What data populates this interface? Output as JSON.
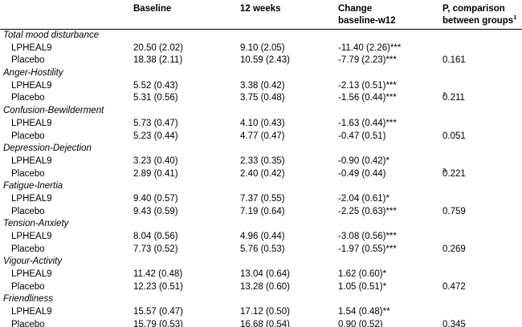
{
  "headers": {
    "baseline": "Baseline",
    "w12": "12 weeks",
    "change_line1": "Change",
    "change_line2": "baseline-w12",
    "p_line1": "P, comparison",
    "p_line2": "between groups",
    "p_sup": "1"
  },
  "sections": [
    {
      "title": "Total mood disturbance",
      "rows": [
        {
          "group": "LPHEAL9",
          "baseline": "20.50 (2.02)",
          "w12": "9.10 (2.05)",
          "change": "-11.40 (2.26)***",
          "p": "",
          "p_sup": ""
        },
        {
          "group": "Placebo",
          "baseline": "18.38 (2.11)",
          "w12": "10.59 (2.43)",
          "change": "-7.79 (2.23)***",
          "p": "0.161",
          "p_sup": ""
        }
      ]
    },
    {
      "title": "Anger-Hostility",
      "rows": [
        {
          "group": "LPHEAL9",
          "baseline": "5.52 (0.43)",
          "w12": "3.38 (0.42)",
          "change": "-2.13 (0.51)***",
          "p": "",
          "p_sup": ""
        },
        {
          "group": "Placebo",
          "baseline": "5.31 (0.56)",
          "w12": "3.75 (0.48)",
          "change": "-1.56 (0.44)***",
          "p": "0.211",
          "p_sup": "2"
        }
      ]
    },
    {
      "title": "Confusion-Bewilderment",
      "rows": [
        {
          "group": "LPHEAL9",
          "baseline": "5.73 (0.47)",
          "w12": "4.10 (0.43)",
          "change": "-1.63 (0.44)***",
          "p": "",
          "p_sup": ""
        },
        {
          "group": "Placebo",
          "baseline": "5.23 (0.44)",
          "w12": "4.77 (0.47)",
          "change": "-0.47 (0.51)",
          "p": "0.051",
          "p_sup": ""
        }
      ]
    },
    {
      "title": "Depression-Dejection",
      "rows": [
        {
          "group": "LPHEAL9",
          "baseline": "3.23 (0.40)",
          "w12": "2.33 (0.35)",
          "change": "-0.90 (0.42)*",
          "p": "",
          "p_sup": ""
        },
        {
          "group": "Placebo",
          "baseline": "2.89 (0.41)",
          "w12": "2.40 (0.42)",
          "change": "-0.49 (0.44)",
          "p": "0.221",
          "p_sup": "3"
        }
      ]
    },
    {
      "title": "Fatigue-Inertia",
      "rows": [
        {
          "group": "LPHEAL9",
          "baseline": "9.40 (0.57)",
          "w12": "7.37 (0.55)",
          "change": "-2.04 (0.61)*",
          "p": "",
          "p_sup": ""
        },
        {
          "group": "Placebo",
          "baseline": "9.43 (0.59)",
          "w12": "7.19 (0.64)",
          "change": "-2.25 (0.63)***",
          "p": "0.759",
          "p_sup": ""
        }
      ]
    },
    {
      "title": "Tension-Anxiety",
      "rows": [
        {
          "group": "LPHEAL9",
          "baseline": "8.04 (0.56)",
          "w12": "4.96 (0.44)",
          "change": "-3.08 (0.56)***",
          "p": "",
          "p_sup": ""
        },
        {
          "group": "Placebo",
          "baseline": "7.73 (0.52)",
          "w12": "5.76 (0.53)",
          "change": "-1.97 (0.55)***",
          "p": "0.269",
          "p_sup": ""
        }
      ]
    },
    {
      "title": "Vigour-Activity",
      "rows": [
        {
          "group": "LPHEAL9",
          "baseline": "11.42 (0.48)",
          "w12": "13.04 (0.64)",
          "change": "1.62 (0.60)*",
          "p": "",
          "p_sup": ""
        },
        {
          "group": "Placebo",
          "baseline": "12.23 (0.51)",
          "w12": "13.28 (0.60)",
          "change": "1.05 (0.51)*",
          "p": "0.472",
          "p_sup": ""
        }
      ]
    },
    {
      "title": "Friendliness",
      "rows": [
        {
          "group": "LPHEAL9",
          "baseline": "15.57 (0.47)",
          "w12": "17.12 (0.50)",
          "change": "1.54 (0.48)**",
          "p": "",
          "p_sup": ""
        },
        {
          "group": "Placebo",
          "baseline": "15.79 (0.53)",
          "w12": "16.68 (0.54)",
          "change": "0.90 (0.52)",
          "p": "0.345",
          "p_sup": ""
        }
      ]
    }
  ]
}
